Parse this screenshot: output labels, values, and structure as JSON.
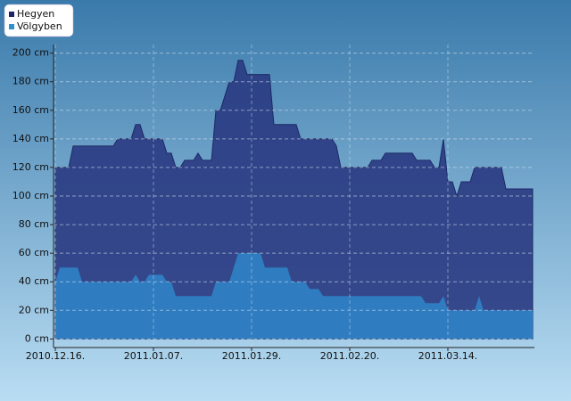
{
  "chart_data": {
    "type": "area",
    "x": [
      "2010-12-16",
      "2010-12-17",
      "2010-12-18",
      "2010-12-19",
      "2010-12-20",
      "2010-12-21",
      "2010-12-22",
      "2010-12-23",
      "2010-12-24",
      "2010-12-25",
      "2010-12-26",
      "2010-12-27",
      "2010-12-28",
      "2010-12-29",
      "2010-12-30",
      "2010-12-31",
      "2011-01-01",
      "2011-01-02",
      "2011-01-03",
      "2011-01-04",
      "2011-01-05",
      "2011-01-06",
      "2011-01-07",
      "2011-01-08",
      "2011-01-09",
      "2011-01-10",
      "2011-01-11",
      "2011-01-12",
      "2011-01-13",
      "2011-01-14",
      "2011-01-15",
      "2011-01-16",
      "2011-01-17",
      "2011-01-18",
      "2011-01-19",
      "2011-01-20",
      "2011-01-21",
      "2011-01-22",
      "2011-01-23",
      "2011-01-24",
      "2011-01-25",
      "2011-01-26",
      "2011-01-27",
      "2011-01-28",
      "2011-01-29",
      "2011-01-30",
      "2011-01-31",
      "2011-02-01",
      "2011-02-02",
      "2011-02-03",
      "2011-02-04",
      "2011-02-05",
      "2011-02-06",
      "2011-02-07",
      "2011-02-08",
      "2011-02-09",
      "2011-02-10",
      "2011-02-11",
      "2011-02-12",
      "2011-02-13",
      "2011-02-14",
      "2011-02-15",
      "2011-02-16",
      "2011-02-17",
      "2011-02-18",
      "2011-02-19",
      "2011-02-20",
      "2011-02-21",
      "2011-02-22",
      "2011-02-23",
      "2011-02-24",
      "2011-02-25",
      "2011-02-26",
      "2011-02-27",
      "2011-02-28",
      "2011-03-01",
      "2011-03-02",
      "2011-03-03",
      "2011-03-04",
      "2011-03-05",
      "2011-03-06",
      "2011-03-07",
      "2011-03-08",
      "2011-03-09",
      "2011-03-10",
      "2011-03-11",
      "2011-03-12",
      "2011-03-13",
      "2011-03-14",
      "2011-03-15",
      "2011-03-16",
      "2011-03-17",
      "2011-03-18",
      "2011-03-19",
      "2011-03-20",
      "2011-03-21",
      "2011-03-22",
      "2011-03-23",
      "2011-03-24",
      "2011-03-25",
      "2011-03-26",
      "2011-03-27",
      "2011-03-28",
      "2011-03-29",
      "2011-03-30",
      "2011-03-31",
      "2011-04-01",
      "2011-04-02"
    ],
    "series": [
      {
        "name": "Hegyen",
        "color": "#2a3a82",
        "legend_color": "#1a2466",
        "values": [
          120,
          120,
          120,
          120,
          135,
          135,
          135,
          135,
          135,
          135,
          135,
          135,
          135,
          135,
          140,
          140,
          140,
          140,
          150,
          150,
          140,
          140,
          140,
          140,
          140,
          130,
          130,
          120,
          120,
          125,
          125,
          125,
          130,
          125,
          125,
          125,
          160,
          160,
          170,
          180,
          180,
          195,
          195,
          185,
          185,
          185,
          185,
          185,
          185,
          150,
          150,
          150,
          150,
          150,
          150,
          140,
          140,
          140,
          140,
          140,
          140,
          140,
          140,
          135,
          120,
          120,
          120,
          120,
          120,
          120,
          120,
          125,
          125,
          125,
          130,
          130,
          130,
          130,
          130,
          130,
          130,
          125,
          125,
          125,
          125,
          120,
          120,
          140,
          110,
          110,
          100,
          110,
          110,
          110,
          120,
          120,
          120,
          120,
          120,
          120,
          120,
          105,
          105,
          105,
          105,
          105,
          105,
          105
        ]
      },
      {
        "name": "Völgyben",
        "color": "#2f7cc0",
        "legend_color": "#2f8fd0",
        "values": [
          40,
          50,
          50,
          50,
          50,
          50,
          40,
          40,
          40,
          40,
          40,
          40,
          40,
          40,
          40,
          40,
          40,
          40,
          45,
          40,
          40,
          45,
          45,
          45,
          45,
          40,
          40,
          30,
          30,
          30,
          30,
          30,
          30,
          30,
          30,
          30,
          40,
          40,
          40,
          40,
          50,
          60,
          60,
          60,
          60,
          60,
          60,
          50,
          50,
          50,
          50,
          50,
          50,
          40,
          40,
          40,
          40,
          35,
          35,
          35,
          30,
          30,
          30,
          30,
          30,
          30,
          30,
          30,
          30,
          30,
          30,
          30,
          30,
          30,
          30,
          30,
          30,
          30,
          30,
          30,
          30,
          30,
          30,
          25,
          25,
          25,
          25,
          30,
          20,
          20,
          20,
          20,
          20,
          20,
          20,
          30,
          20,
          20,
          20,
          20,
          20,
          20,
          20,
          20,
          20,
          20,
          20,
          20
        ]
      }
    ],
    "xlim": [
      "2010-12-16",
      "2011-04-02"
    ],
    "xticks": [
      {
        "value": "2010-12-16",
        "label": "2010.12.16."
      },
      {
        "value": "2011-01-07",
        "label": "2011.01.07."
      },
      {
        "value": "2011-01-29",
        "label": "2011.01.29."
      },
      {
        "value": "2011-02-20",
        "label": "2011.02.20."
      },
      {
        "value": "2011-03-14",
        "label": "2011.03.14."
      }
    ],
    "ylim": [
      -6,
      206
    ],
    "yticks": [
      {
        "value": 0,
        "label": "0 cm"
      },
      {
        "value": 20,
        "label": "20 cm"
      },
      {
        "value": 40,
        "label": "40 cm"
      },
      {
        "value": 60,
        "label": "60 cm"
      },
      {
        "value": 80,
        "label": "80 cm"
      },
      {
        "value": 100,
        "label": "100 cm"
      },
      {
        "value": 120,
        "label": "120 cm"
      },
      {
        "value": 140,
        "label": "140 cm"
      },
      {
        "value": 160,
        "label": "160 cm"
      },
      {
        "value": 180,
        "label": "180 cm"
      },
      {
        "value": 200,
        "label": "200 cm"
      }
    ],
    "grid": true,
    "legend": "top-left"
  }
}
